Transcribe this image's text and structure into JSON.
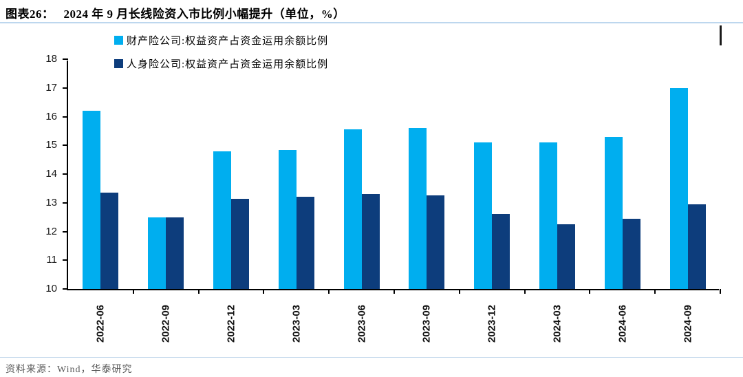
{
  "header": {
    "title_prefix": "图表26：",
    "title_text": "2024 年 9 月长线险资入市比例小幅提升（单位，%）"
  },
  "footer": {
    "source_text": "资料来源：Wind，华泰研究"
  },
  "colors": {
    "series_light_blue": "#00AEEF",
    "series_dark_navy": "#0D3D7C",
    "title_rule": "#BDD7EE",
    "footer_rule": "#C5D9EC",
    "axis": "#000000",
    "footer_text": "#595959"
  },
  "chart_data": {
    "type": "bar",
    "title": "2024 年 9 月长线险资入市比例小幅提升（单位，%）",
    "categories": [
      "2022-06",
      "2022-09",
      "2022-12",
      "2023-03",
      "2023-06",
      "2023-09",
      "2023-12",
      "2024-03",
      "2024-06",
      "2024-09"
    ],
    "series": [
      {
        "name": "财产险公司:权益资产占资金运用余额比例",
        "color": "#00AEEF",
        "values": [
          16.2,
          12.5,
          14.8,
          14.85,
          15.55,
          15.6,
          15.1,
          15.1,
          15.3,
          17.0
        ]
      },
      {
        "name": "人身险公司:权益资产占资金运用余额比例",
        "color": "#0D3D7C",
        "values": [
          13.35,
          12.5,
          13.15,
          13.2,
          13.3,
          13.25,
          12.6,
          12.25,
          12.45,
          12.95
        ]
      }
    ],
    "xlabel": "",
    "ylabel": "",
    "ylim": [
      10,
      18
    ],
    "y_ticks": [
      10,
      11,
      12,
      13,
      14,
      15,
      16,
      17,
      18
    ],
    "grid": false,
    "legend_position": "top-left",
    "unit": "%"
  }
}
